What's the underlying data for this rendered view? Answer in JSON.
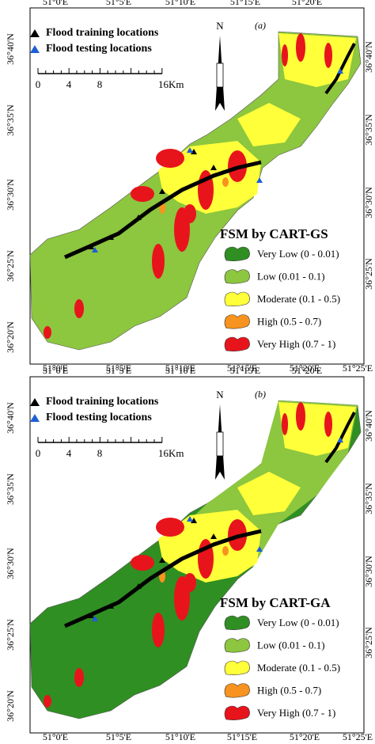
{
  "panels": [
    {
      "label": "(a)",
      "title": "FSM by CART-GS",
      "top_ticks": [
        "51°0'E",
        "51°5'E",
        "51°10'E",
        "51°15'E",
        "51°20'E"
      ],
      "bottom_ticks": [
        "51°0'E",
        "51°5'E",
        "51°10'E",
        "51°15'E",
        "51°20'E",
        "51°25'E"
      ],
      "left_ticks": [
        "36°40'N",
        "36°35'N",
        "36°30'N",
        "36°25'N",
        "36°20'N"
      ],
      "right_ticks": [
        "36°40'N",
        "36°35'N",
        "36°30'N",
        "36°25'N"
      ],
      "points_legend": [
        "Flood training locations",
        "Flood testing locations"
      ],
      "scale": [
        "0",
        "4",
        "8",
        "16Km"
      ],
      "north": "N",
      "legend": [
        {
          "label": "Very Low (0 - 0.01)",
          "color": "#2f8f22"
        },
        {
          "label": "Low (0.01 - 0.1)",
          "color": "#8dc63f"
        },
        {
          "label": "Moderate (0.1 - 0.5)",
          "color": "#ffff3a"
        },
        {
          "label": "High (0.5 - 0.7)",
          "color": "#f7931e"
        },
        {
          "label": "Very High (0.7 - 1)",
          "color": "#e8141b"
        }
      ]
    },
    {
      "label": "(b)",
      "title": "FSM by CART-GA",
      "top_ticks": [
        "51°0'E",
        "51°5'E",
        "51°10'E",
        "51°15'E",
        "51°20'E"
      ],
      "bottom_ticks": [
        "51°0'E",
        "51°5'E",
        "51°10'E",
        "51°15'E",
        "51°20'E",
        "51°25'E"
      ],
      "left_ticks": [
        "36°40'N",
        "36°35'N",
        "36°30'N",
        "36°25'N",
        "36°20'N"
      ],
      "right_ticks": [
        "36°40'N",
        "36°35'N",
        "36°30'N",
        "36°25'N"
      ],
      "points_legend": [
        "Flood training locations",
        "Flood testing locations"
      ],
      "scale": [
        "0",
        "4",
        "8",
        "16Km"
      ],
      "north": "N",
      "legend": [
        {
          "label": "Very Low (0 - 0.01)",
          "color": "#2f8f22"
        },
        {
          "label": "Low (0.01 - 0.1)",
          "color": "#8dc63f"
        },
        {
          "label": "Moderate (0.1 - 0.5)",
          "color": "#ffff3a"
        },
        {
          "label": "High (0.5 - 0.7)",
          "color": "#f7931e"
        },
        {
          "label": "Very High (0.7 - 1)",
          "color": "#e8141b"
        }
      ]
    }
  ]
}
